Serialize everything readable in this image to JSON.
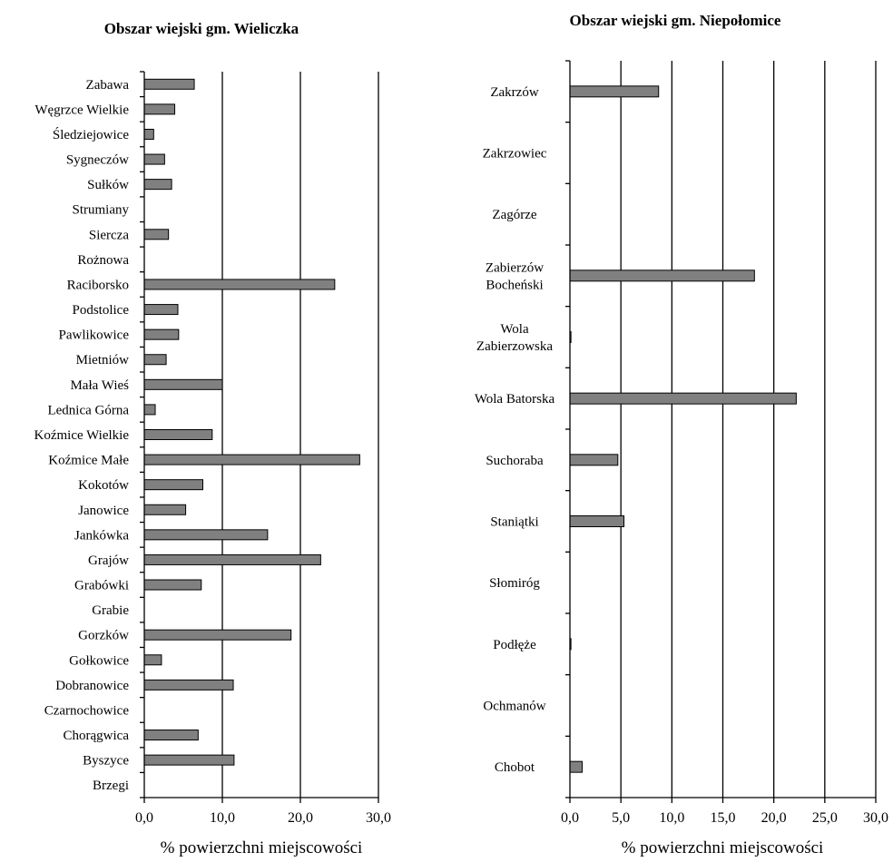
{
  "chart_data": [
    {
      "type": "bar",
      "orientation": "horizontal",
      "title": "Obszar wiejski gm. Wieliczka",
      "xlabel": "% powierzchni miejscowości",
      "xlim": [
        0,
        30
      ],
      "xticks": [
        "0,0",
        "10,0",
        "20,0",
        "30,0"
      ],
      "grid": true,
      "categories": [
        "Zabawa",
        "Węgrzce Wielkie",
        "Śledziejowice",
        "Sygneczów",
        "Sułków",
        "Strumiany",
        "Siercza",
        "Rożnowa",
        "Raciborsko",
        "Podstolice",
        "Pawlikowice",
        "Mietniów",
        "Mała Wieś",
        "Lednica Górna",
        "Koźmice Wielkie",
        "Koźmice Małe",
        "Kokotów",
        "Janowice",
        "Jankówka",
        "Grajów",
        "Grabówki",
        "Grabie",
        "Gorzków",
        "Gołkowice",
        "Dobranowice",
        "Czarnochowice",
        "Chorągwica",
        "Byszyce",
        "Brzegi"
      ],
      "values": [
        6.4,
        3.9,
        1.2,
        2.6,
        3.5,
        0,
        3.1,
        0,
        24.4,
        4.3,
        4.4,
        2.8,
        10.0,
        1.4,
        8.7,
        27.6,
        7.5,
        5.3,
        15.8,
        22.6,
        7.3,
        0,
        18.8,
        2.2,
        11.4,
        0,
        6.9,
        11.5,
        0
      ]
    },
    {
      "type": "bar",
      "orientation": "horizontal",
      "title": "Obszar wiejski gm. Niepołomice",
      "xlabel": "% powierzchni miejscowości",
      "xlim": [
        0,
        30
      ],
      "xticks": [
        "0,0",
        "5,0",
        "10,0",
        "15,0",
        "20,0",
        "25,0",
        "30,0"
      ],
      "grid": true,
      "categories": [
        [
          "Zakrzów"
        ],
        [
          "Zakrzowiec"
        ],
        [
          "Zagórze"
        ],
        [
          "Zabierzów",
          "Bocheński"
        ],
        [
          "Wola",
          "Zabierzowska"
        ],
        [
          "Wola Batorska"
        ],
        [
          "Suchoraba"
        ],
        [
          "Staniątki"
        ],
        [
          "Słomiróg"
        ],
        [
          "Podłęże"
        ],
        [
          "Ochmanów"
        ],
        [
          "Chobot"
        ]
      ],
      "values": [
        8.7,
        0,
        0,
        18.1,
        0.1,
        22.2,
        4.7,
        5.3,
        0,
        0.1,
        0,
        1.2
      ]
    }
  ]
}
